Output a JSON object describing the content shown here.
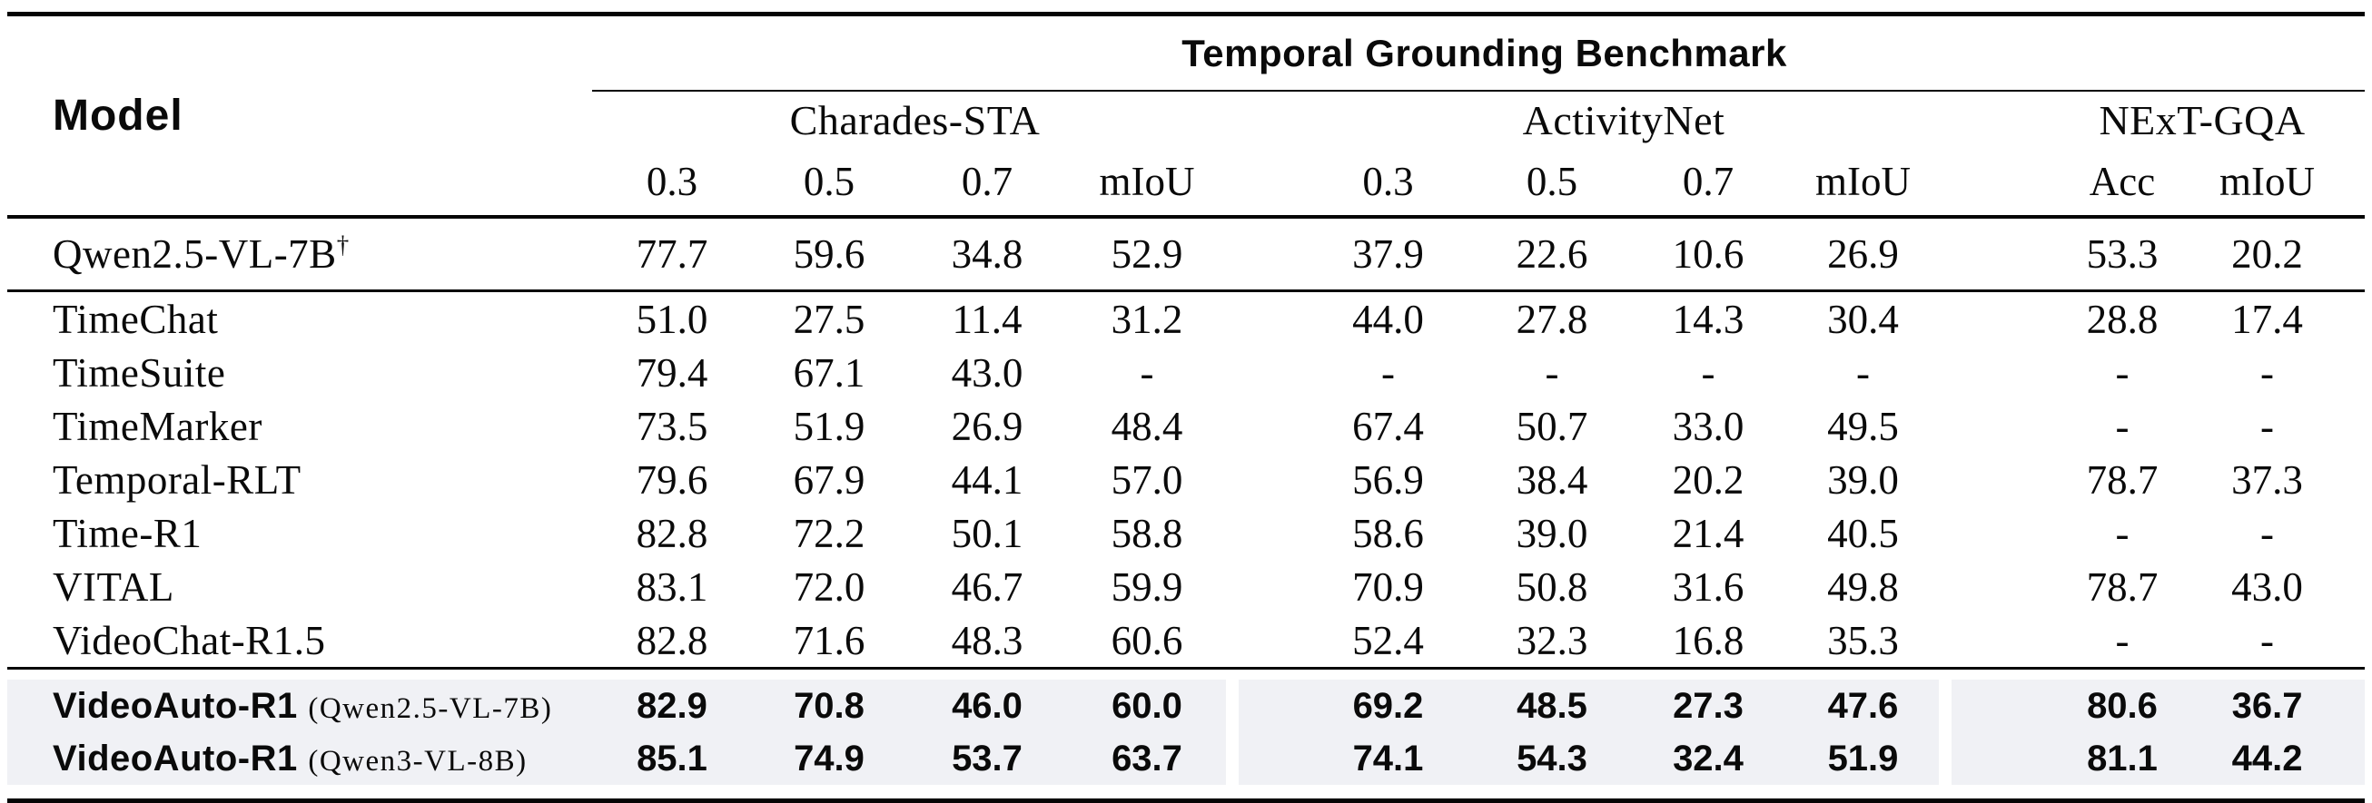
{
  "table": {
    "header": {
      "model_label": "Model",
      "benchmark_title": "Temporal Grounding Benchmark",
      "groups": [
        {
          "label": "Charades-STA",
          "columns": [
            "0.3",
            "0.5",
            "0.7",
            "mIoU"
          ]
        },
        {
          "label": "ActivityNet",
          "columns": [
            "0.3",
            "0.5",
            "0.7",
            "mIoU"
          ]
        },
        {
          "label": "NExT-GQA",
          "columns": [
            "Acc",
            "mIoU"
          ]
        }
      ]
    },
    "baseline_row": {
      "model": "Qwen2.5-VL-7B",
      "superscript": "†",
      "values": [
        "77.7",
        "59.6",
        "34.8",
        "52.9",
        "37.9",
        "22.6",
        "10.6",
        "26.9",
        "53.3",
        "20.2"
      ]
    },
    "body_rows": [
      {
        "model": "TimeChat",
        "values": [
          "51.0",
          "27.5",
          "11.4",
          "31.2",
          "44.0",
          "27.8",
          "14.3",
          "30.4",
          "28.8",
          "17.4"
        ]
      },
      {
        "model": "TimeSuite",
        "values": [
          "79.4",
          "67.1",
          "43.0",
          "-",
          "-",
          "-",
          "-",
          "-",
          "-",
          "-"
        ]
      },
      {
        "model": "TimeMarker",
        "values": [
          "73.5",
          "51.9",
          "26.9",
          "48.4",
          "67.4",
          "50.7",
          "33.0",
          "49.5",
          "-",
          "-"
        ]
      },
      {
        "model": "Temporal-RLT",
        "values": [
          "79.6",
          "67.9",
          "44.1",
          "57.0",
          "56.9",
          "38.4",
          "20.2",
          "39.0",
          "78.7",
          "37.3"
        ]
      },
      {
        "model": "Time-R1",
        "values": [
          "82.8",
          "72.2",
          "50.1",
          "58.8",
          "58.6",
          "39.0",
          "21.4",
          "40.5",
          "-",
          "-"
        ]
      },
      {
        "model": "VITAL",
        "values": [
          "83.1",
          "72.0",
          "46.7",
          "59.9",
          "70.9",
          "50.8",
          "31.6",
          "49.8",
          "78.7",
          "43.0"
        ]
      },
      {
        "model": "VideoChat-R1.5",
        "values": [
          "82.8",
          "71.6",
          "48.3",
          "60.6",
          "52.4",
          "32.3",
          "16.8",
          "35.3",
          "-",
          "-"
        ]
      }
    ],
    "highlight_rows": [
      {
        "model": "VideoAuto-R1",
        "variant": "(Qwen2.5-VL-7B)",
        "values": [
          "82.9",
          "70.8",
          "46.0",
          "60.0",
          "69.2",
          "48.5",
          "27.3",
          "47.6",
          "80.6",
          "36.7"
        ]
      },
      {
        "model": "VideoAuto-R1",
        "variant": "(Qwen3-VL-8B)",
        "values": [
          "85.1",
          "74.9",
          "53.7",
          "63.7",
          "74.1",
          "54.3",
          "32.4",
          "51.9",
          "81.1",
          "44.2"
        ]
      }
    ],
    "highlight_color": "#f0f1f5",
    "rule_color": "#050505"
  }
}
